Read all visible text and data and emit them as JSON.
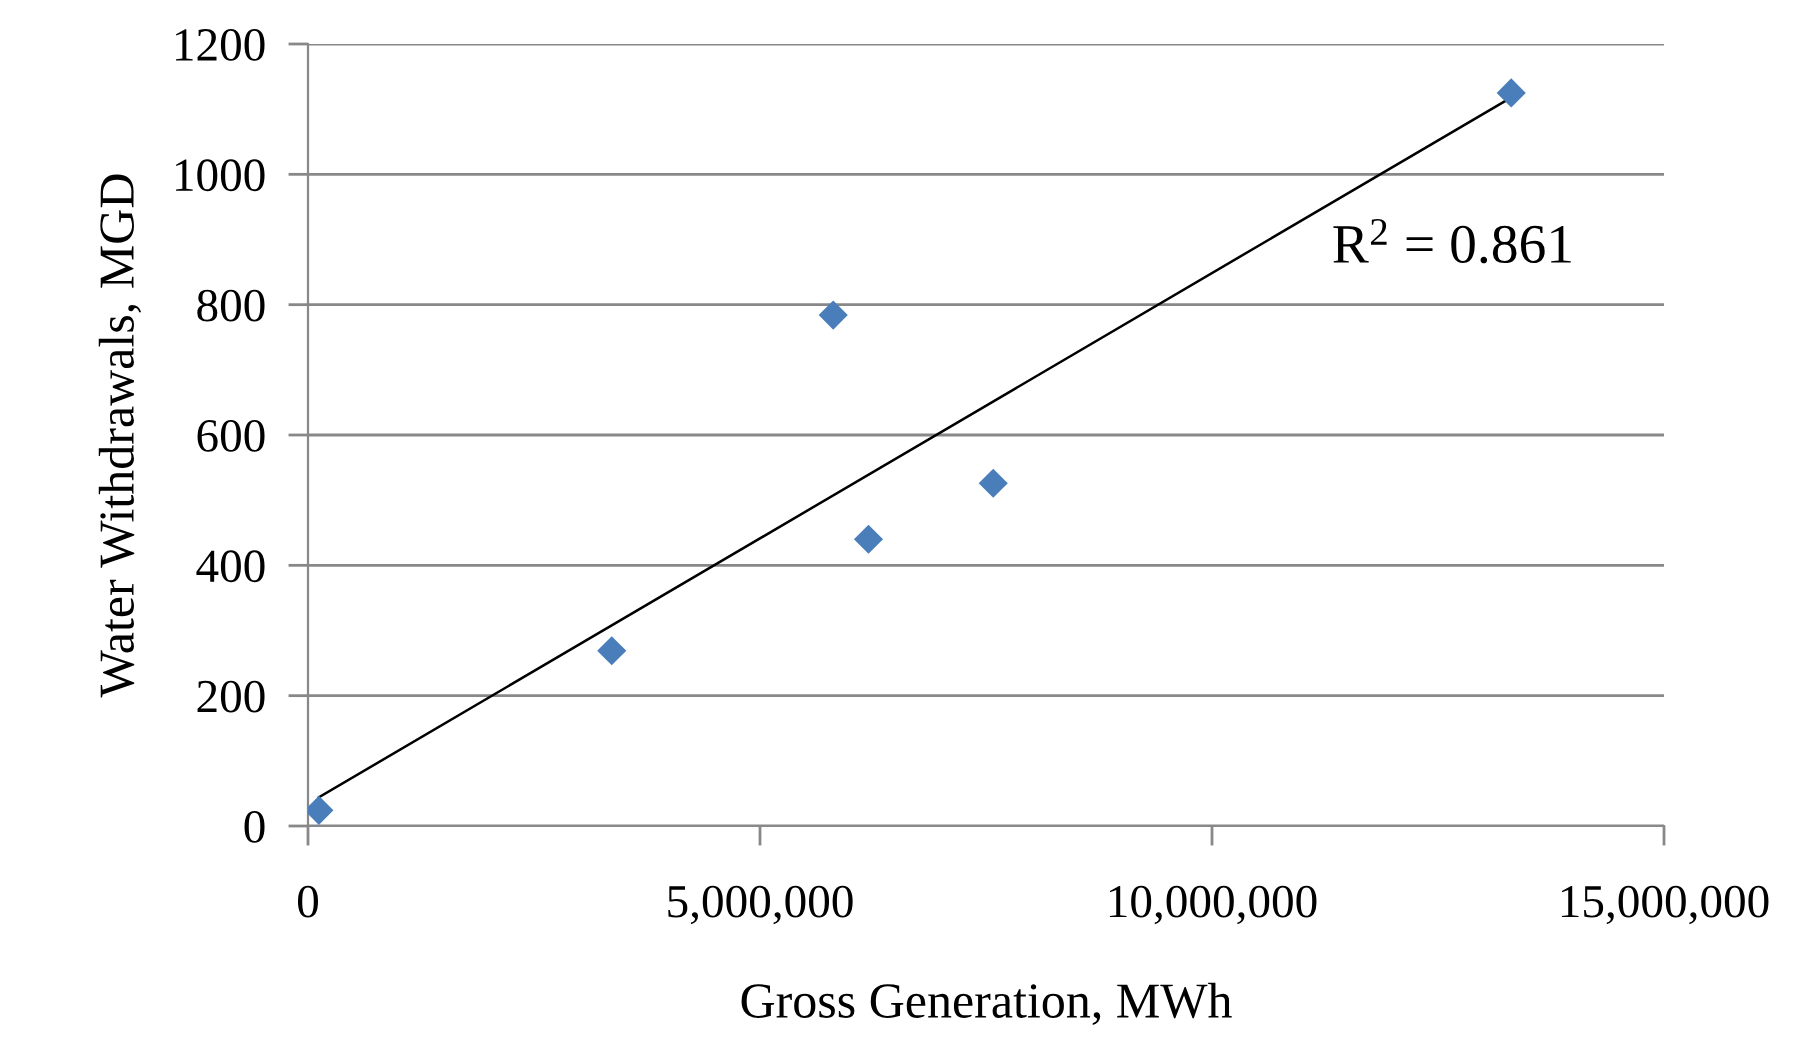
{
  "chart_data": {
    "type": "scatter",
    "xlabel": "Gross Generation, MWh",
    "ylabel": "Water Withdrawals, MGD",
    "xlim": [
      0,
      15000000
    ],
    "ylim": [
      0,
      1200
    ],
    "xticks": [
      0,
      {
        "value": 5000000,
        "label": "5,000,000"
      },
      {
        "value": 10000000,
        "label": "10,000,000"
      },
      {
        "value": 15000000,
        "label": "15,000,000"
      }
    ],
    "yticks": [
      0,
      200,
      400,
      600,
      800,
      1000,
      1200
    ],
    "grid": "y",
    "legend": false,
    "marker": "diamond",
    "series": [
      {
        "color": "#4a7ebb",
        "x": [
          120000,
          3360000,
          5810000,
          6200000,
          7580000,
          13310000
        ],
        "values": [
          24,
          269,
          784,
          440,
          526,
          1125
        ]
      },
      {
        "type": "line",
        "color": "#000000",
        "marker": "none",
        "line_style": "solid",
        "x": [
          120000,
          13310000
        ],
        "values": [
          44,
          1118
        ]
      }
    ],
    "annotations": [
      "R$^{2}$ = 0.861"
    ]
  }
}
